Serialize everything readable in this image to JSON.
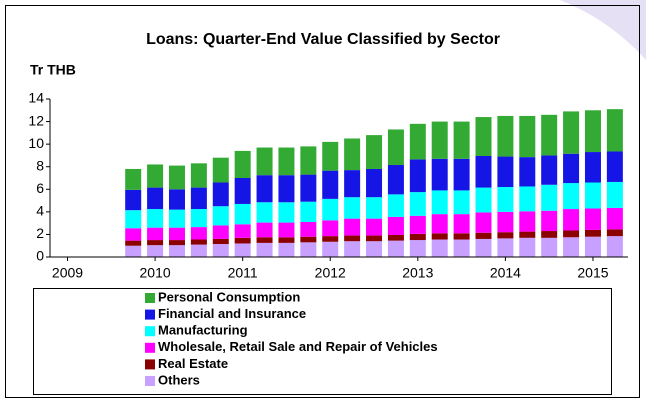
{
  "chart_data": {
    "type": "stacked_bar",
    "title": "Loans: Quarter-End Value Classified by Sector",
    "y_label": "Tr THB",
    "x": [
      2009.75,
      2010.0,
      2010.25,
      2010.5,
      2010.75,
      2011.0,
      2011.25,
      2011.5,
      2011.75,
      2012.0,
      2012.25,
      2012.5,
      2012.75,
      2013.0,
      2013.25,
      2013.5,
      2013.75,
      2014.0,
      2014.25,
      2014.5,
      2014.75,
      2015.0,
      2015.25
    ],
    "xlim": [
      2008.8,
      2015.4
    ],
    "xticks": [
      2009,
      2010,
      2011,
      2012,
      2013,
      2014,
      2015
    ],
    "ylim": [
      0,
      14
    ],
    "yticks": [
      0,
      2,
      4,
      6,
      8,
      10,
      12,
      14
    ],
    "grid": false,
    "series": [
      {
        "name": "Personal Consumption",
        "color": "#33aa33",
        "values": [
          1.85,
          2.05,
          2.1,
          2.15,
          2.2,
          2.4,
          2.45,
          2.45,
          2.5,
          2.55,
          2.8,
          3.0,
          3.15,
          3.15,
          3.3,
          3.3,
          3.45,
          3.6,
          3.65,
          3.6,
          3.75,
          3.7,
          3.75
        ]
      },
      {
        "name": "Financial and Insurance",
        "color": "#1515e6",
        "values": [
          1.8,
          1.9,
          1.8,
          1.9,
          2.1,
          2.3,
          2.4,
          2.4,
          2.4,
          2.5,
          2.4,
          2.5,
          2.6,
          2.9,
          2.8,
          2.8,
          2.8,
          2.7,
          2.6,
          2.6,
          2.6,
          2.7,
          2.7
        ]
      },
      {
        "name": "Manufacturing",
        "color": "#00ffff",
        "values": [
          1.6,
          1.65,
          1.6,
          1.6,
          1.7,
          1.8,
          1.8,
          1.8,
          1.8,
          1.9,
          1.9,
          1.9,
          2.0,
          2.1,
          2.1,
          2.1,
          2.2,
          2.2,
          2.2,
          2.3,
          2.3,
          2.3,
          2.3
        ]
      },
      {
        "name": "Wholesale, Retail Sale and Repair of Vehicles",
        "color": "#ff00ff",
        "values": [
          1.1,
          1.1,
          1.1,
          1.1,
          1.2,
          1.2,
          1.3,
          1.3,
          1.3,
          1.4,
          1.5,
          1.5,
          1.6,
          1.6,
          1.7,
          1.7,
          1.8,
          1.8,
          1.8,
          1.8,
          1.9,
          1.9,
          1.9
        ]
      },
      {
        "name": "Real Estate",
        "color": "#8b0000",
        "values": [
          0.45,
          0.45,
          0.45,
          0.45,
          0.45,
          0.5,
          0.5,
          0.5,
          0.5,
          0.5,
          0.5,
          0.5,
          0.5,
          0.55,
          0.55,
          0.55,
          0.55,
          0.55,
          0.55,
          0.6,
          0.6,
          0.6,
          0.6
        ]
      },
      {
        "name": "Others",
        "color": "#c8a0ff",
        "values": [
          1.0,
          1.05,
          1.05,
          1.1,
          1.15,
          1.2,
          1.25,
          1.25,
          1.3,
          1.35,
          1.4,
          1.4,
          1.45,
          1.5,
          1.55,
          1.55,
          1.6,
          1.65,
          1.7,
          1.7,
          1.75,
          1.8,
          1.85
        ]
      }
    ]
  }
}
